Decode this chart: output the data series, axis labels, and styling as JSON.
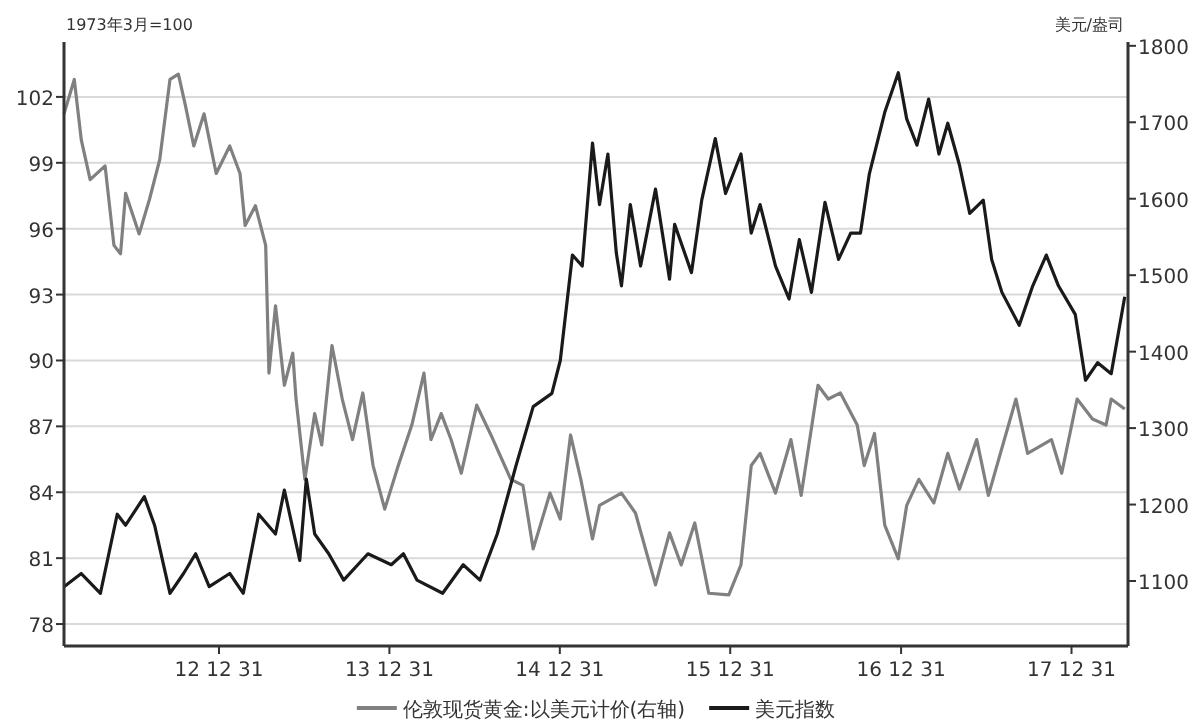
{
  "chart_data": {
    "type": "line",
    "ylabel": "1973年3月=100",
    "y2label": "美元/盎司",
    "xlim": [
      "2012-02-03",
      "2018-05-01"
    ],
    "xticks": [
      {
        "value": "2012-12-31",
        "label": "12 12 31"
      },
      {
        "value": "2013-12-31",
        "label": "13 12 31"
      },
      {
        "value": "2014-12-31",
        "label": "14 12 31"
      },
      {
        "value": "2015-12-31",
        "label": "15 12 31"
      },
      {
        "value": "2016-12-31",
        "label": "16 12 31"
      },
      {
        "value": "2017-12-31",
        "label": "17 12 31"
      }
    ],
    "ylim": [
      77,
      104.5
    ],
    "yticks": [
      78,
      81,
      84,
      87,
      90,
      93,
      96,
      99,
      102
    ],
    "y2lim": [
      1015,
      1805
    ],
    "y2ticks": [
      1100,
      1200,
      1300,
      1400,
      1500,
      1600,
      1700,
      1800
    ],
    "grid": "y",
    "legend": "bottom",
    "series": [
      {
        "name": "伦敦现货黄金:以美元计价(右轴)",
        "color": "#808080",
        "axis": "y2",
        "x": [
          "2012-02-03",
          "2012-02-25",
          "2012-03-11",
          "2012-03-30",
          "2012-05-01",
          "2012-05-20",
          "2012-06-03",
          "2012-06-14",
          "2012-07-13",
          "2012-08-04",
          "2012-08-26",
          "2012-09-17",
          "2012-10-05",
          "2012-10-20",
          "2012-11-07",
          "2012-11-29",
          "2012-12-25",
          "2013-01-23",
          "2013-02-14",
          "2013-02-25",
          "2013-03-19",
          "2013-04-10",
          "2013-04-17",
          "2013-05-01",
          "2013-05-20",
          "2013-06-07",
          "2013-06-14",
          "2013-07-03",
          "2013-07-24",
          "2013-08-08",
          "2013-08-30",
          "2013-09-21",
          "2013-10-13",
          "2013-11-04",
          "2013-11-26",
          "2013-12-21",
          "2014-01-19",
          "2014-02-17",
          "2014-03-15",
          "2014-03-30",
          "2014-04-21",
          "2014-05-12",
          "2014-06-03",
          "2014-07-06",
          "2014-08-04",
          "2014-09-17",
          "2014-10-13",
          "2014-11-04",
          "2014-12-10",
          "2015-01-01",
          "2015-01-23",
          "2015-02-14",
          "2015-03-11",
          "2015-03-26",
          "2015-05-12",
          "2015-06-11",
          "2015-07-24",
          "2015-08-23",
          "2015-09-17",
          "2015-10-16",
          "2015-11-15",
          "2015-12-28",
          "2016-01-23",
          "2016-02-14",
          "2016-03-04",
          "2016-04-06",
          "2016-05-09",
          "2016-05-31",
          "2016-07-06",
          "2016-07-28",
          "2016-08-23",
          "2016-09-28",
          "2016-10-13",
          "2016-11-04",
          "2016-11-26",
          "2016-12-25",
          "2017-01-12",
          "2017-02-07",
          "2017-03-11",
          "2017-04-10",
          "2017-05-05",
          "2017-06-11",
          "2017-07-06",
          "2017-09-03",
          "2017-09-28",
          "2017-11-18",
          "2017-12-10",
          "2018-01-12",
          "2018-02-14",
          "2018-03-15",
          "2018-03-26",
          "2018-04-24"
        ],
        "values": [
          1711,
          1756,
          1677,
          1625,
          1643,
          1539,
          1528,
          1607,
          1554,
          1599,
          1651,
          1756,
          1763,
          1722,
          1669,
          1711,
          1633,
          1669,
          1633,
          1565,
          1591,
          1539,
          1372,
          1460,
          1356,
          1398,
          1338,
          1233,
          1319,
          1278,
          1408,
          1338,
          1285,
          1346,
          1251,
          1194,
          1251,
          1304,
          1372,
          1285,
          1319,
          1285,
          1241,
          1330,
          1293,
          1233,
          1225,
          1142,
          1215,
          1181,
          1291,
          1233,
          1155,
          1199,
          1215,
          1189,
          1095,
          1163,
          1121,
          1176,
          1084,
          1082,
          1121,
          1251,
          1267,
          1215,
          1285,
          1212,
          1356,
          1338,
          1346,
          1304,
          1251,
          1293,
          1173,
          1129,
          1199,
          1233,
          1202,
          1267,
          1220,
          1285,
          1212,
          1338,
          1267,
          1285,
          1241,
          1338,
          1312,
          1304,
          1338,
          1325
        ]
      },
      {
        "name": "美元指数",
        "color": "#1a1a1a",
        "x": [
          "2012-02-03",
          "2012-03-11",
          "2012-04-21",
          "2012-05-27",
          "2012-06-14",
          "2012-07-24",
          "2012-08-15",
          "2012-09-17",
          "2012-10-16",
          "2012-11-11",
          "2012-12-10",
          "2013-01-23",
          "2013-02-21",
          "2013-03-26",
          "2013-05-01",
          "2013-05-20",
          "2013-06-22",
          "2013-07-06",
          "2013-07-24",
          "2013-08-23",
          "2013-09-24",
          "2013-11-15",
          "2014-01-04",
          "2014-01-30",
          "2014-02-28",
          "2014-04-24",
          "2014-06-07",
          "2014-07-13",
          "2014-08-19",
          "2014-09-28",
          "2014-11-04",
          "2014-12-14",
          "2015-01-01",
          "2015-01-27",
          "2015-02-17",
          "2015-03-11",
          "2015-03-26",
          "2015-04-13",
          "2015-05-01",
          "2015-05-12",
          "2015-05-31",
          "2015-06-22",
          "2015-07-24",
          "2015-08-23",
          "2015-09-03",
          "2015-10-09",
          "2015-10-31",
          "2015-11-29",
          "2015-12-21",
          "2016-01-23",
          "2016-02-14",
          "2016-03-04",
          "2016-04-06",
          "2016-05-05",
          "2016-05-27",
          "2016-06-22",
          "2016-07-21",
          "2016-08-19",
          "2016-09-14",
          "2016-10-05",
          "2016-10-24",
          "2016-11-26",
          "2016-12-25",
          "2017-01-12",
          "2017-02-03",
          "2017-02-28",
          "2017-03-22",
          "2017-04-10",
          "2017-05-05",
          "2017-05-27",
          "2017-06-25",
          "2017-07-13",
          "2017-08-04",
          "2017-09-10",
          "2017-10-09",
          "2017-11-07",
          "2017-12-03",
          "2018-01-08",
          "2018-01-30",
          "2018-02-25",
          "2018-03-26",
          "2018-04-24"
        ],
        "values": [
          79.7,
          80.3,
          79.4,
          83.0,
          82.5,
          83.8,
          82.5,
          79.4,
          80.3,
          81.2,
          79.7,
          80.3,
          79.4,
          83.0,
          82.1,
          84.1,
          80.9,
          84.6,
          82.1,
          81.2,
          80.0,
          81.2,
          80.7,
          81.2,
          80.0,
          79.4,
          80.7,
          80.0,
          82.1,
          85.2,
          87.9,
          88.5,
          90.0,
          94.8,
          94.3,
          99.9,
          97.1,
          99.4,
          94.9,
          93.4,
          97.1,
          94.3,
          97.8,
          93.7,
          96.2,
          94.0,
          97.3,
          100.1,
          97.6,
          99.4,
          95.8,
          97.1,
          94.3,
          92.8,
          95.5,
          93.1,
          97.2,
          94.6,
          95.8,
          95.8,
          98.5,
          101.3,
          103.1,
          101.0,
          99.8,
          101.9,
          99.4,
          100.8,
          98.9,
          96.7,
          97.3,
          94.6,
          93.1,
          91.6,
          93.4,
          94.8,
          93.4,
          92.1,
          89.1,
          89.9,
          89.4,
          92.9
        ]
      }
    ]
  }
}
